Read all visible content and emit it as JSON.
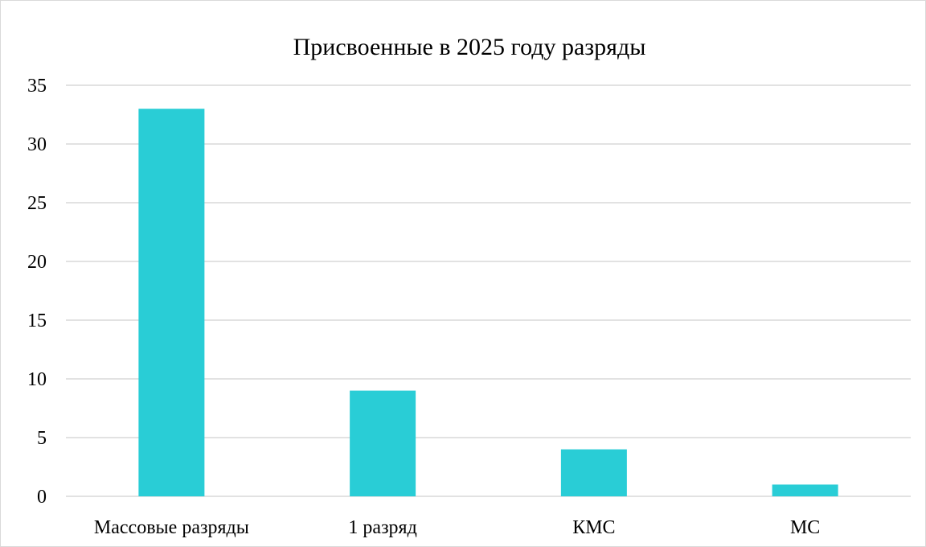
{
  "chart_data": {
    "type": "bar",
    "title": "Присвоенные в 2025 году разряды",
    "categories": [
      "Массовые разряды",
      "1 разряд",
      "КМС",
      "МС"
    ],
    "values": [
      33,
      9,
      4,
      1
    ],
    "yticks": [
      "0",
      "5",
      "10",
      "15",
      "20",
      "25",
      "30",
      "35"
    ],
    "ylim": [
      0,
      35
    ],
    "grid": true,
    "legend": "none",
    "bar_color": "#29cdd6",
    "grid_color": "#d9d9d9"
  }
}
